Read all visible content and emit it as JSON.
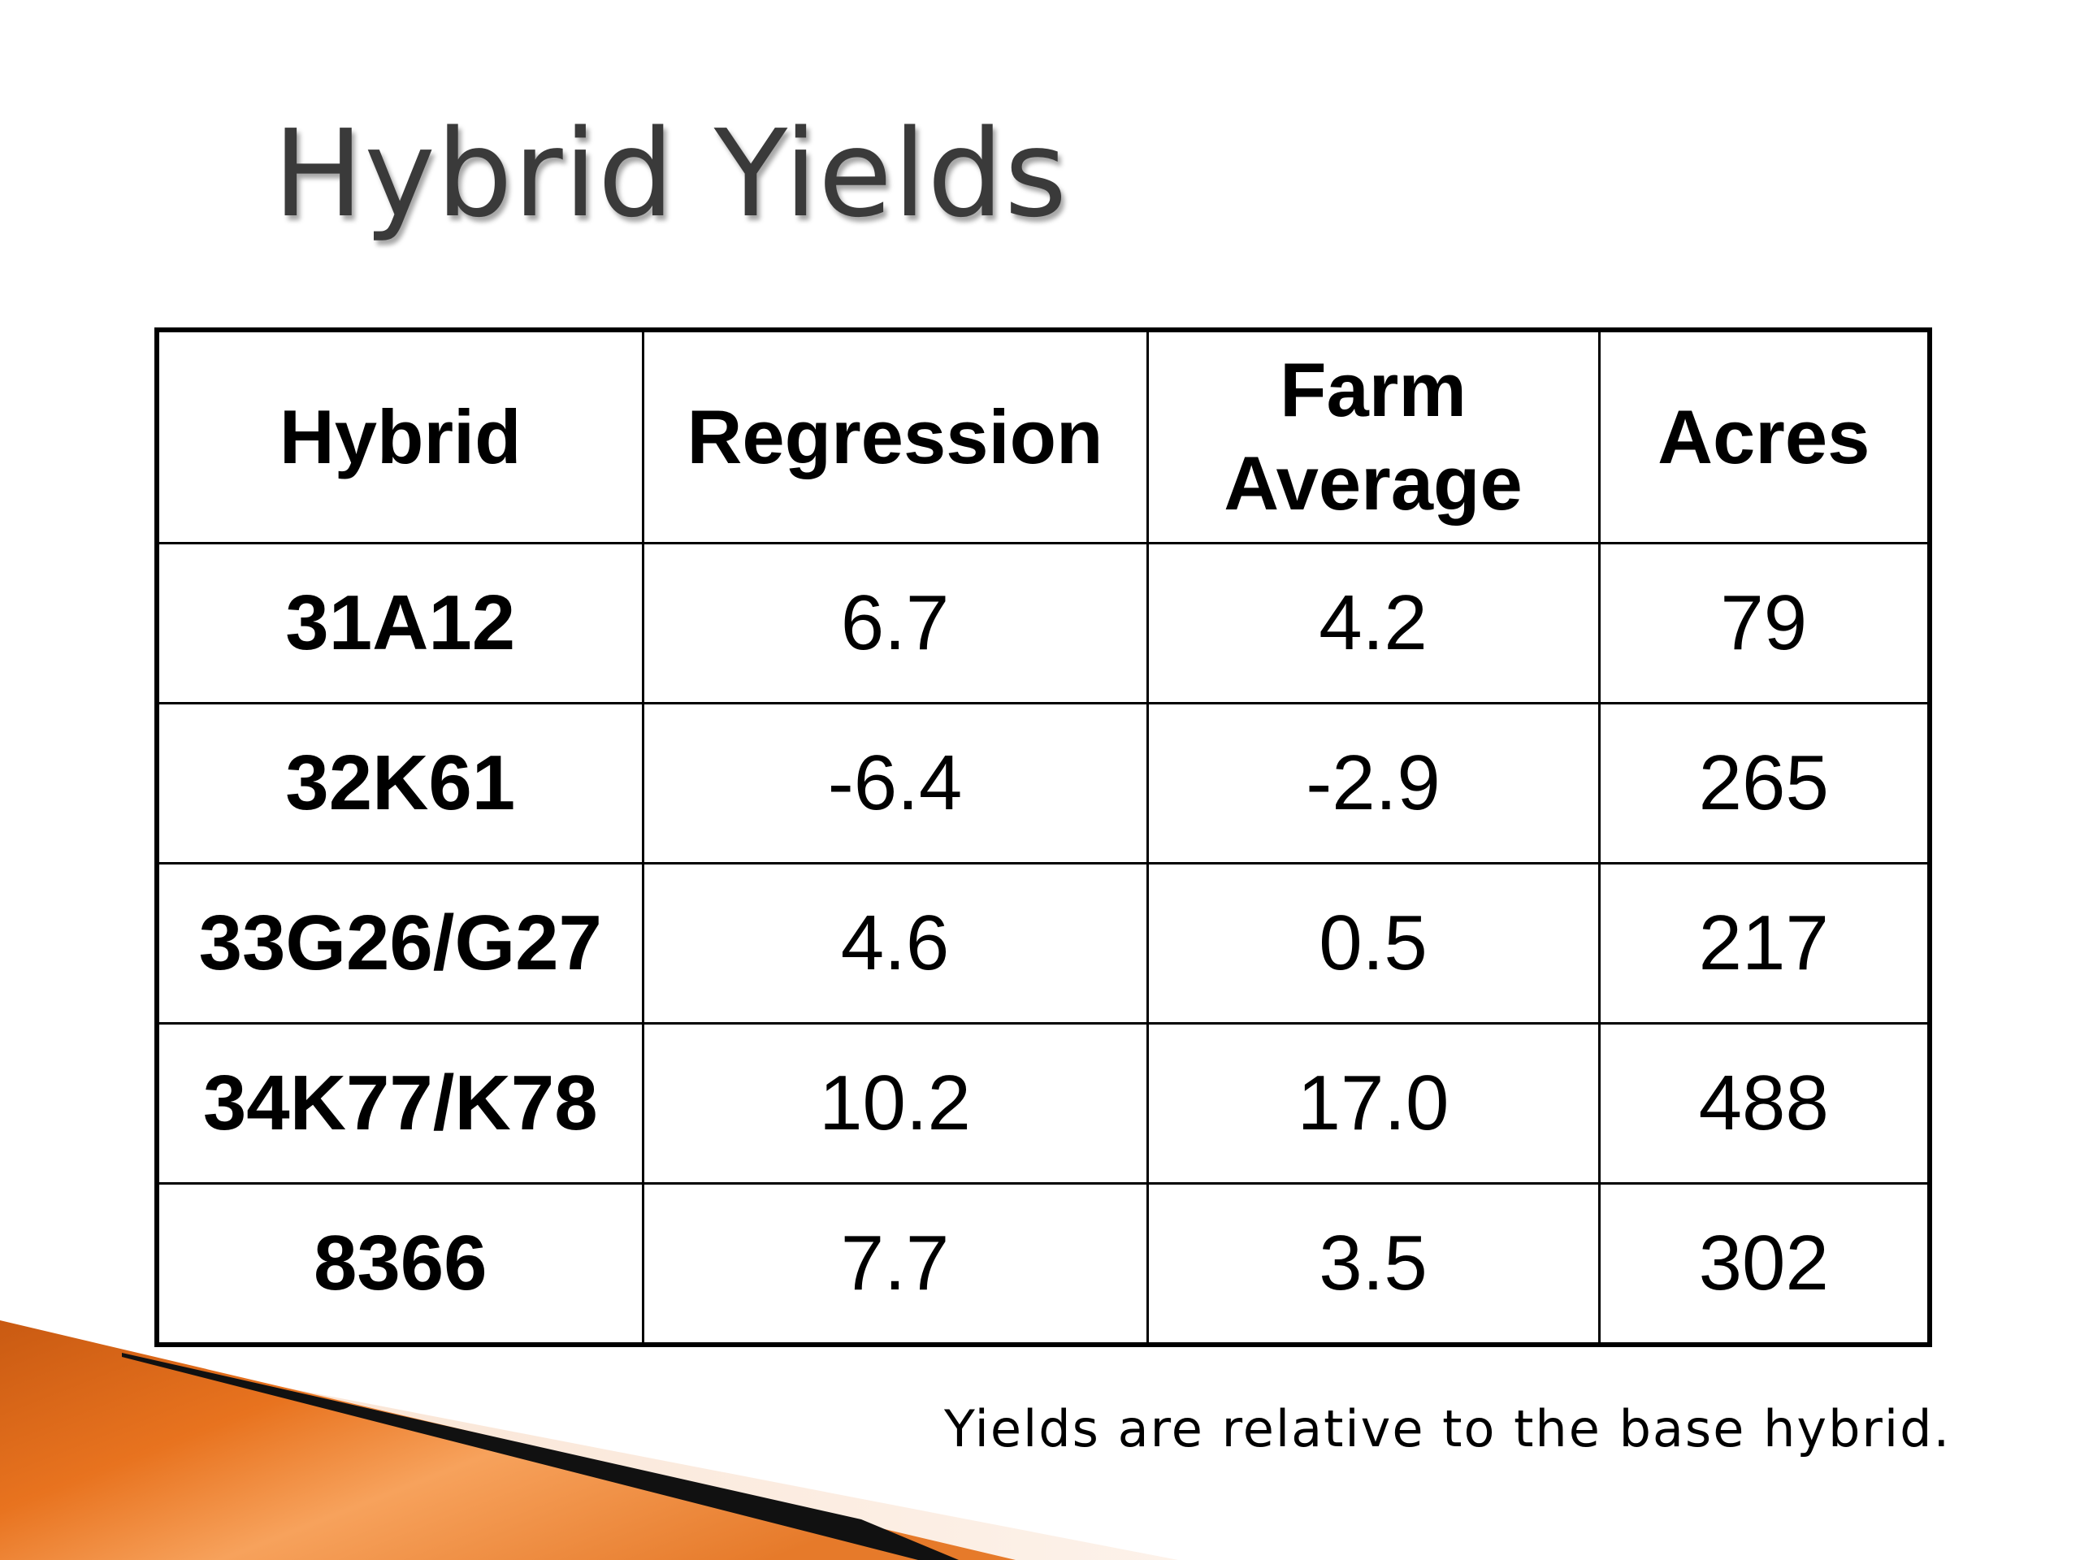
{
  "slide": {
    "title": "Hybrid Yields",
    "footnote": "Yields are relative to the base hybrid."
  },
  "table": {
    "headers": {
      "hybrid": "Hybrid",
      "regression": "Regression",
      "farm_average_line1": "Farm",
      "farm_average_line2": "Average",
      "acres": "Acres"
    },
    "rows": [
      {
        "hybrid": "31A12",
        "regression": "6.7",
        "farm_average": "4.2",
        "acres": "79"
      },
      {
        "hybrid": "32K61",
        "regression": "-6.4",
        "farm_average": "-2.9",
        "acres": "265"
      },
      {
        "hybrid": "33G26/G27",
        "regression": "4.6",
        "farm_average": "0.5",
        "acres": "217"
      },
      {
        "hybrid": "34K77/K78",
        "regression": "10.2",
        "farm_average": "17.0",
        "acres": "488"
      },
      {
        "hybrid": "8366",
        "regression": "7.7",
        "farm_average": "3.5",
        "acres": "302"
      }
    ]
  },
  "colors": {
    "accent_orange": "#E8731F",
    "accent_orange_light": "#F7A25C",
    "title_gray": "#3A3A3A"
  }
}
